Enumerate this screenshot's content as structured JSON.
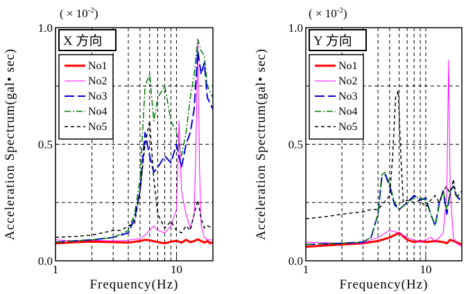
{
  "chart_data": [
    {
      "type": "line",
      "badge": "X 方向",
      "scale_prefix": "(",
      "scale_mult": "× 10",
      "scale_exp": "-2",
      "scale_suffix": ")",
      "xlabel": "Frequency(Hz)",
      "ylabel": "Acceleration Spectrum(gal• sec)",
      "xscale": "log",
      "xlim": [
        1,
        20
      ],
      "ylim": [
        0,
        1.0
      ],
      "xticks": [
        {
          "value": 1,
          "label": "1"
        },
        {
          "value": 10,
          "label": "10"
        }
      ],
      "yticks": [
        {
          "value": 0,
          "label": "0.0"
        },
        {
          "value": 0.5,
          "label": "0.5"
        },
        {
          "value": 1.0,
          "label": "1.0"
        }
      ],
      "grid": "dashed",
      "legend_position": "upper-left",
      "series": [
        {
          "name": "No1",
          "color": "#ff0000",
          "style": "solid",
          "width": 3,
          "points": [
            [
              1,
              0.075
            ],
            [
              1.5,
              0.08
            ],
            [
              2,
              0.082
            ],
            [
              3,
              0.08
            ],
            [
              4,
              0.078
            ],
            [
              5,
              0.085
            ],
            [
              5.5,
              0.09
            ],
            [
              6,
              0.088
            ],
            [
              7,
              0.08
            ],
            [
              8,
              0.075
            ],
            [
              9,
              0.082
            ],
            [
              10,
              0.086
            ],
            [
              11,
              0.078
            ],
            [
              12,
              0.09
            ],
            [
              13,
              0.08
            ],
            [
              14,
              0.085
            ],
            [
              15,
              0.092
            ],
            [
              16,
              0.085
            ],
            [
              17,
              0.078
            ],
            [
              18,
              0.085
            ],
            [
              19,
              0.075
            ],
            [
              20,
              0.08
            ]
          ]
        },
        {
          "name": "No2",
          "color": "#ff00ff",
          "style": "solid",
          "width": 1,
          "points": [
            [
              1,
              0.09
            ],
            [
              1.5,
              0.085
            ],
            [
              2,
              0.088
            ],
            [
              3,
              0.085
            ],
            [
              4,
              0.088
            ],
            [
              5,
              0.095
            ],
            [
              5.5,
              0.11
            ],
            [
              6,
              0.13
            ],
            [
              6.5,
              0.15
            ],
            [
              7,
              0.13
            ],
            [
              8,
              0.12
            ],
            [
              9,
              0.15
            ],
            [
              10,
              0.22
            ],
            [
              10.5,
              0.6
            ],
            [
              11,
              0.3
            ],
            [
              12,
              0.2
            ],
            [
              13,
              0.14
            ],
            [
              14,
              0.2
            ],
            [
              14.5,
              0.5
            ],
            [
              15,
              0.95
            ],
            [
              15.5,
              0.4
            ],
            [
              16,
              0.15
            ],
            [
              17,
              0.1
            ],
            [
              18,
              0.09
            ],
            [
              20,
              0.09
            ]
          ]
        },
        {
          "name": "No3",
          "color": "#0000dd",
          "style": "longdash",
          "width": 2,
          "points": [
            [
              1,
              0.08
            ],
            [
              2,
              0.09
            ],
            [
              3,
              0.1
            ],
            [
              4,
              0.12
            ],
            [
              4.5,
              0.18
            ],
            [
              5,
              0.3
            ],
            [
              5.5,
              0.55
            ],
            [
              6,
              0.45
            ],
            [
              6.5,
              0.38
            ],
            [
              7,
              0.4
            ],
            [
              8,
              0.45
            ],
            [
              9,
              0.42
            ],
            [
              10,
              0.5
            ],
            [
              11,
              0.4
            ],
            [
              12,
              0.5
            ],
            [
              13,
              0.55
            ],
            [
              14,
              0.65
            ],
            [
              15,
              0.9
            ],
            [
              16,
              0.8
            ],
            [
              17,
              0.85
            ],
            [
              18,
              0.7
            ],
            [
              20,
              0.65
            ]
          ]
        },
        {
          "name": "No4",
          "color": "#007700",
          "style": "dashdot",
          "width": 1.5,
          "points": [
            [
              1,
              0.08
            ],
            [
              2,
              0.09
            ],
            [
              3,
              0.1
            ],
            [
              4,
              0.13
            ],
            [
              4.5,
              0.2
            ],
            [
              5,
              0.35
            ],
            [
              5.5,
              0.75
            ],
            [
              6,
              0.8
            ],
            [
              6.5,
              0.6
            ],
            [
              7,
              0.7
            ],
            [
              8,
              0.75
            ],
            [
              9,
              0.6
            ],
            [
              10,
              0.55
            ],
            [
              11,
              0.45
            ],
            [
              12,
              0.55
            ],
            [
              13,
              0.7
            ],
            [
              14,
              0.8
            ],
            [
              15,
              0.95
            ],
            [
              16,
              0.9
            ],
            [
              17,
              0.88
            ],
            [
              18,
              0.75
            ],
            [
              20,
              0.7
            ]
          ]
        },
        {
          "name": "No5",
          "color": "#000000",
          "style": "dash",
          "width": 1.5,
          "points": [
            [
              1,
              0.1
            ],
            [
              1.5,
              0.105
            ],
            [
              2,
              0.11
            ],
            [
              3,
              0.13
            ],
            [
              3.5,
              0.13
            ],
            [
              4,
              0.15
            ],
            [
              4.5,
              0.16
            ],
            [
              5,
              0.3
            ],
            [
              5.5,
              0.5
            ],
            [
              6,
              0.6
            ],
            [
              6.5,
              0.35
            ],
            [
              7,
              0.2
            ],
            [
              8,
              0.14
            ],
            [
              9,
              0.17
            ],
            [
              10,
              0.13
            ],
            [
              11,
              0.12
            ],
            [
              12,
              0.15
            ],
            [
              13,
              0.13
            ],
            [
              14,
              0.2
            ],
            [
              15,
              0.26
            ],
            [
              16,
              0.18
            ],
            [
              17,
              0.14
            ],
            [
              18,
              0.15
            ],
            [
              20,
              0.14
            ]
          ]
        }
      ]
    },
    {
      "type": "line",
      "badge": "Y 方向",
      "scale_prefix": "(",
      "scale_mult": "× 10",
      "scale_exp": "-2",
      "scale_suffix": ")",
      "xlabel": "Frequency(Hz)",
      "ylabel": "Acceleration Spectrum(gal• sec)",
      "xscale": "log",
      "xlim": [
        1,
        20
      ],
      "ylim": [
        0,
        1.0
      ],
      "xticks": [
        {
          "value": 1,
          "label": "1"
        },
        {
          "value": 10,
          "label": "10"
        }
      ],
      "yticks": [
        {
          "value": 0,
          "label": "0.0"
        },
        {
          "value": 0.5,
          "label": "0.5"
        },
        {
          "value": 1.0,
          "label": "1.0"
        }
      ],
      "grid": "dashed",
      "legend_position": "upper-left",
      "series": [
        {
          "name": "No1",
          "color": "#ff0000",
          "style": "solid",
          "width": 3,
          "points": [
            [
              1,
              0.06
            ],
            [
              2,
              0.07
            ],
            [
              3,
              0.075
            ],
            [
              4,
              0.085
            ],
            [
              5,
              0.1
            ],
            [
              5.5,
              0.11
            ],
            [
              6,
              0.12
            ],
            [
              6.5,
              0.105
            ],
            [
              7,
              0.09
            ],
            [
              8,
              0.08
            ],
            [
              9,
              0.085
            ],
            [
              10,
              0.08
            ],
            [
              12,
              0.085
            ],
            [
              14,
              0.08
            ],
            [
              15,
              0.075
            ],
            [
              16,
              0.09
            ],
            [
              17,
              0.085
            ],
            [
              18,
              0.08
            ],
            [
              20,
              0.07
            ]
          ]
        },
        {
          "name": "No2",
          "color": "#ff00ff",
          "style": "solid",
          "width": 1,
          "points": [
            [
              1,
              0.08
            ],
            [
              2,
              0.075
            ],
            [
              3,
              0.075
            ],
            [
              3.5,
              0.09
            ],
            [
              4,
              0.1
            ],
            [
              5,
              0.13
            ],
            [
              6,
              0.12
            ],
            [
              7,
              0.1
            ],
            [
              8,
              0.09
            ],
            [
              9,
              0.08
            ],
            [
              10,
              0.09
            ],
            [
              11,
              0.1
            ],
            [
              12,
              0.085
            ],
            [
              13,
              0.1
            ],
            [
              14,
              0.12
            ],
            [
              15,
              0.3
            ],
            [
              15.5,
              0.86
            ],
            [
              16,
              0.3
            ],
            [
              17,
              0.1
            ],
            [
              18,
              0.075
            ],
            [
              20,
              0.06
            ]
          ]
        },
        {
          "name": "No3",
          "color": "#0000dd",
          "style": "longdash",
          "width": 2,
          "points": [
            [
              1,
              0.07
            ],
            [
              2,
              0.075
            ],
            [
              3,
              0.08
            ],
            [
              3.5,
              0.1
            ],
            [
              4,
              0.2
            ],
            [
              4.3,
              0.36
            ],
            [
              4.6,
              0.37
            ],
            [
              5,
              0.32
            ],
            [
              5.5,
              0.24
            ],
            [
              6,
              0.22
            ],
            [
              7,
              0.25
            ],
            [
              8,
              0.28
            ],
            [
              9,
              0.26
            ],
            [
              10,
              0.27
            ],
            [
              11,
              0.2
            ],
            [
              12,
              0.15
            ],
            [
              13,
              0.25
            ],
            [
              14,
              0.3
            ],
            [
              15,
              0.2
            ],
            [
              16,
              0.3
            ],
            [
              17,
              0.32
            ],
            [
              18,
              0.28
            ],
            [
              20,
              0.25
            ]
          ]
        },
        {
          "name": "No4",
          "color": "#007700",
          "style": "dashdot",
          "width": 1.5,
          "points": [
            [
              1,
              0.07
            ],
            [
              2,
              0.075
            ],
            [
              3,
              0.08
            ],
            [
              3.5,
              0.1
            ],
            [
              4,
              0.2
            ],
            [
              4.3,
              0.37
            ],
            [
              4.6,
              0.38
            ],
            [
              5,
              0.33
            ],
            [
              5.5,
              0.25
            ],
            [
              6,
              0.22
            ],
            [
              7,
              0.25
            ],
            [
              8,
              0.27
            ],
            [
              9,
              0.27
            ],
            [
              10,
              0.26
            ],
            [
              11,
              0.2
            ],
            [
              12,
              0.15
            ],
            [
              13,
              0.24
            ],
            [
              14,
              0.3
            ],
            [
              15,
              0.22
            ],
            [
              16,
              0.3
            ],
            [
              17,
              0.32
            ],
            [
              18,
              0.28
            ],
            [
              20,
              0.26
            ]
          ]
        },
        {
          "name": "No5",
          "color": "#000000",
          "style": "dash",
          "width": 1.5,
          "points": [
            [
              1,
              0.18
            ],
            [
              1.5,
              0.19
            ],
            [
              2,
              0.2
            ],
            [
              3,
              0.21
            ],
            [
              3.5,
              0.22
            ],
            [
              4,
              0.22
            ],
            [
              4.5,
              0.25
            ],
            [
              5,
              0.28
            ],
            [
              5.3,
              0.45
            ],
            [
              5.6,
              0.7
            ],
            [
              5.9,
              0.73
            ],
            [
              6.2,
              0.45
            ],
            [
              6.5,
              0.25
            ],
            [
              7,
              0.26
            ],
            [
              8,
              0.25
            ],
            [
              9,
              0.26
            ],
            [
              10,
              0.23
            ],
            [
              11,
              0.26
            ],
            [
              12,
              0.28
            ],
            [
              13,
              0.25
            ],
            [
              14,
              0.3
            ],
            [
              15,
              0.32
            ],
            [
              16,
              0.28
            ],
            [
              17,
              0.35
            ],
            [
              18,
              0.27
            ],
            [
              20,
              0.3
            ]
          ]
        }
      ]
    }
  ]
}
